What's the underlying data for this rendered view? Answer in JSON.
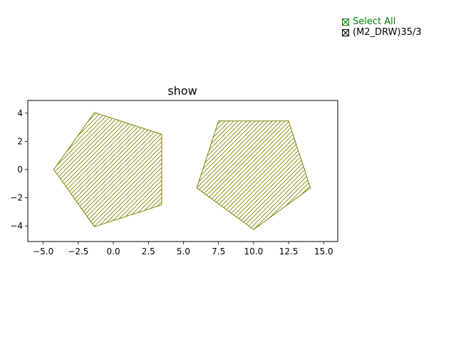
{
  "checklist": {
    "items": [
      {
        "label": "Select All",
        "checked": true,
        "color": "#008000"
      },
      {
        "label": "(M2_DRW)35/3",
        "checked": true,
        "color": "#000000"
      }
    ]
  },
  "chart_data": {
    "type": "polygon",
    "title": "show",
    "xlabel": "",
    "ylabel": "",
    "xlim": [
      -6.1,
      16.0
    ],
    "ylim": [
      -5.1,
      4.9
    ],
    "xticks": [
      -5.0,
      -2.5,
      0.0,
      2.5,
      5.0,
      7.5,
      10.0,
      12.5,
      15.0
    ],
    "xtick_labels": [
      "−5.0",
      "−2.5",
      "0.0",
      "2.5",
      "5.0",
      "7.5",
      "10.0",
      "12.5",
      "15.0"
    ],
    "yticks": [
      4,
      2,
      0,
      -2,
      -4
    ],
    "ytick_labels": [
      "4",
      "2",
      "0",
      "−2",
      "−4"
    ],
    "grid": false,
    "series": [
      {
        "name": "(M2_DRW)35/3",
        "color": "#808000",
        "hatch": "////",
        "polygons": [
          [
            [
              -1.35,
              4.05
            ],
            [
              3.45,
              2.5
            ],
            [
              3.45,
              -2.5
            ],
            [
              -1.35,
              -4.05
            ],
            [
              -4.25,
              0.0
            ]
          ],
          [
            [
              7.5,
              3.45
            ],
            [
              12.5,
              3.45
            ],
            [
              14.05,
              -1.3
            ],
            [
              10.0,
              -4.25
            ],
            [
              5.95,
              -1.3
            ]
          ]
        ]
      }
    ]
  }
}
